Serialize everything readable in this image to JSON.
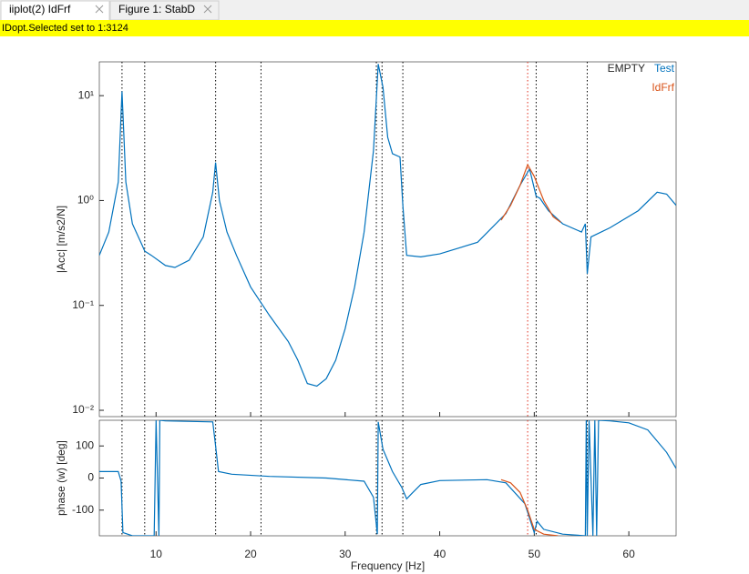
{
  "tabs": [
    "iiplot(2) IdFrf",
    "Figure 1: StabD"
  ],
  "status": "IDopt.Selected set to 1:3124",
  "chart_data": [
    {
      "type": "line",
      "ylabel": "|Acc| [m/s2/N]",
      "log_y": true,
      "legend_title": "EMPTY",
      "legend": "top-right",
      "xlim": [
        4,
        65
      ],
      "xticks": [
        10,
        20,
        30,
        40,
        50,
        60
      ],
      "ylim": [
        0.0087,
        21
      ],
      "yticks": [
        {
          "value": 0.01,
          "label": "10⁻²"
        },
        {
          "value": 0.1,
          "label": "10⁻¹"
        },
        {
          "value": 1,
          "label": "10⁰"
        },
        {
          "value": 10,
          "label": "10¹"
        }
      ],
      "vlines": [
        6.4,
        8.8,
        16.3,
        21.1,
        33.3,
        33.9,
        36.1,
        49.3,
        50.2,
        55.6
      ],
      "vline_colors": [
        "#000000",
        "#000000",
        "#000000",
        "#000000",
        "#000000",
        "#000000",
        "#000000",
        "#e0301e",
        "#000000",
        "#000000"
      ],
      "series": [
        {
          "name": "Test",
          "color": "#0072bd",
          "x": [
            4,
            5,
            6,
            6.4,
            6.8,
            7.5,
            8.5,
            8.8,
            9.5,
            11,
            12,
            13.5,
            15,
            16,
            16.3,
            16.7,
            17.5,
            18.5,
            20,
            22,
            24,
            25,
            26,
            27,
            28,
            29,
            30,
            31,
            32,
            33,
            33.5,
            34,
            34.5,
            35,
            35.8,
            36.1,
            36.5,
            38,
            40,
            44,
            47,
            48.5,
            49.5,
            50.2,
            50.6,
            51.5,
            53,
            55,
            55.4,
            55.6,
            56,
            58,
            61,
            63,
            64,
            65
          ],
          "values": [
            0.3,
            0.5,
            1.5,
            11,
            1.5,
            0.6,
            0.38,
            0.33,
            0.3,
            0.24,
            0.23,
            0.27,
            0.45,
            1.2,
            2.3,
            1.0,
            0.5,
            0.3,
            0.15,
            0.08,
            0.045,
            0.03,
            0.018,
            0.017,
            0.02,
            0.03,
            0.06,
            0.15,
            0.5,
            3,
            20,
            12,
            4,
            2.8,
            2.6,
            0.9,
            0.3,
            0.29,
            0.31,
            0.4,
            0.75,
            1.4,
            2.0,
            1.1,
            1.05,
            0.8,
            0.6,
            0.5,
            0.6,
            0.2,
            0.45,
            0.55,
            0.8,
            1.2,
            1.15,
            0.9
          ]
        },
        {
          "name": "IdFrf",
          "color": "#d95319",
          "x": [
            46.5,
            47.5,
            48.5,
            49.3,
            50,
            51,
            52,
            52.8
          ],
          "values": [
            0.65,
            0.9,
            1.4,
            2.2,
            1.7,
            1.0,
            0.7,
            0.62
          ]
        }
      ]
    },
    {
      "type": "line",
      "ylabel": "phase (w) [deg]",
      "xlabel": "Frequency [Hz]",
      "xlim": [
        4,
        65
      ],
      "xticks": [
        10,
        20,
        30,
        40,
        50,
        60
      ],
      "ylim": [
        -180,
        180
      ],
      "yticks": [
        -100,
        0,
        100
      ],
      "vlines": [
        6.4,
        8.8,
        16.3,
        21.1,
        33.3,
        33.9,
        36.1,
        49.3,
        50.2,
        55.6
      ],
      "vline_colors": [
        "#000000",
        "#000000",
        "#000000",
        "#000000",
        "#000000",
        "#000000",
        "#000000",
        "#e0301e",
        "#000000",
        "#000000"
      ],
      "series": [
        {
          "name": "Test",
          "color": "#0072bd",
          "x": [
            4,
            6,
            6.3,
            6.5,
            7.5,
            9.8,
            10,
            10.3,
            10.4,
            11,
            16,
            16.3,
            16.6,
            18,
            22,
            28,
            32,
            33,
            33.4,
            33.5,
            34,
            35,
            36,
            36.5,
            37,
            38,
            40,
            45,
            47,
            49,
            50,
            50.3,
            51,
            53,
            55.4,
            55.5,
            55.6,
            55.8,
            56.2,
            56.4,
            56.6,
            56.8,
            58,
            60,
            62,
            64,
            65
          ],
          "values": [
            20,
            20,
            -10,
            -170,
            -180,
            -180,
            180,
            -180,
            180,
            178,
            175,
            100,
            20,
            12,
            5,
            0,
            -10,
            -60,
            -175,
            175,
            90,
            20,
            -30,
            -65,
            -50,
            -20,
            -8,
            -5,
            -15,
            -80,
            -170,
            -135,
            -160,
            -175,
            -180,
            180,
            -180,
            180,
            -180,
            180,
            -180,
            180,
            178,
            172,
            150,
            80,
            30
          ]
        },
        {
          "name": "IdFrf",
          "color": "#d95319",
          "x": [
            46.5,
            47.5,
            48.5,
            49.3,
            50,
            51,
            52.5
          ],
          "values": [
            -5,
            -15,
            -45,
            -100,
            -160,
            -175,
            -180
          ]
        }
      ]
    }
  ]
}
